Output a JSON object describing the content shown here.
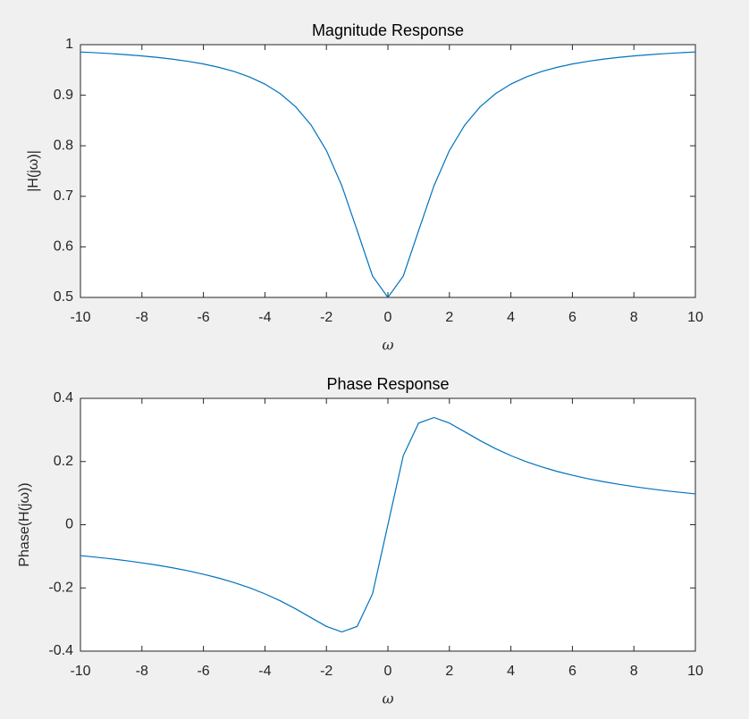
{
  "chart_data": [
    {
      "type": "line",
      "title": "Magnitude Response",
      "x_label": "ω",
      "y_label": "|H(jω)|",
      "color": "#0072bd",
      "x": [
        -10,
        -9.5,
        -9,
        -8.5,
        -8,
        -7.5,
        -7,
        -6.5,
        -6,
        -5.5,
        -5,
        -4.5,
        -4,
        -3.5,
        -3,
        -2.5,
        -2,
        -1.5,
        -1,
        -0.5,
        0,
        0.5,
        1,
        1.5,
        2,
        2.5,
        3,
        3.5,
        4,
        4.5,
        5,
        5.5,
        6,
        6.5,
        7,
        7.5,
        8,
        8.5,
        9,
        9.5,
        10
      ],
      "values": [
        0.9855,
        0.984,
        0.9822,
        0.9801,
        0.9777,
        0.9748,
        0.9713,
        0.967,
        0.9618,
        0.9552,
        0.9469,
        0.9361,
        0.922,
        0.903,
        0.8771,
        0.841,
        0.7906,
        0.7211,
        0.6325,
        0.5423,
        0.5,
        0.5423,
        0.6325,
        0.7211,
        0.7906,
        0.841,
        0.8771,
        0.903,
        0.922,
        0.9361,
        0.9469,
        0.9552,
        0.9618,
        0.967,
        0.9713,
        0.9748,
        0.9777,
        0.9801,
        0.9822,
        0.984,
        0.9855
      ],
      "xlim": [
        -10,
        10
      ],
      "xticks": [
        -10,
        -8,
        -6,
        -4,
        -2,
        0,
        2,
        4,
        6,
        8,
        10
      ],
      "ylim": [
        0.5,
        1
      ],
      "yticks": [
        0.5,
        0.6,
        0.7,
        0.8,
        0.9,
        1
      ]
    },
    {
      "type": "line",
      "title": "Phase Response",
      "x_label": "ω",
      "y_label": "Phase(H(jω))",
      "color": "#0072bd",
      "x": [
        -10,
        -9.5,
        -9,
        -8.5,
        -8,
        -7.5,
        -7,
        -6.5,
        -6,
        -5.5,
        -5,
        -4.5,
        -4,
        -3.5,
        -3,
        -2.5,
        -2,
        -1.5,
        -1,
        -0.5,
        0,
        0.5,
        1,
        1.5,
        2,
        2.5,
        3,
        3.5,
        4,
        4.5,
        5,
        5.5,
        6,
        6.5,
        7,
        7.5,
        8,
        8.5,
        9,
        9.5,
        10
      ],
      "values": [
        -0.0977,
        -0.1026,
        -0.108,
        -0.1139,
        -0.1206,
        -0.128,
        -0.1364,
        -0.1458,
        -0.1566,
        -0.1689,
        -0.1831,
        -0.1995,
        -0.2187,
        -0.2408,
        -0.2662,
        -0.2942,
        -0.3217,
        -0.3393,
        -0.3218,
        -0.2186,
        0,
        0.2186,
        0.3218,
        0.3393,
        0.3217,
        0.2942,
        0.2662,
        0.2408,
        0.2187,
        0.1995,
        0.1831,
        0.1689,
        0.1566,
        0.1458,
        0.1364,
        0.128,
        0.1206,
        0.1139,
        0.108,
        0.1026,
        0.0977
      ],
      "xlim": [
        -10,
        10
      ],
      "xticks": [
        -10,
        -8,
        -6,
        -4,
        -2,
        0,
        2,
        4,
        6,
        8,
        10
      ],
      "ylim": [
        -0.4,
        0.4
      ],
      "yticks": [
        -0.4,
        -0.2,
        0,
        0.2,
        0.4
      ]
    }
  ]
}
